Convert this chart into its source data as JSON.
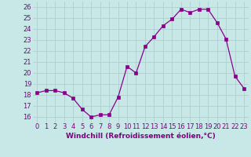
{
  "x": [
    0,
    1,
    2,
    3,
    4,
    5,
    6,
    7,
    8,
    9,
    10,
    11,
    12,
    13,
    14,
    15,
    16,
    17,
    18,
    19,
    20,
    21,
    22,
    23
  ],
  "y": [
    18.2,
    18.4,
    18.4,
    18.2,
    17.7,
    16.7,
    16.0,
    16.2,
    16.2,
    17.8,
    20.6,
    20.0,
    22.4,
    23.3,
    24.3,
    24.9,
    25.8,
    25.5,
    25.8,
    25.8,
    24.6,
    23.1,
    19.7,
    18.6
  ],
  "xlabel": "Windchill (Refroidissement éolien,°C)",
  "ylim": [
    15.5,
    26.5
  ],
  "yticks": [
    16,
    17,
    18,
    19,
    20,
    21,
    22,
    23,
    24,
    25,
    26
  ],
  "xticks": [
    0,
    1,
    2,
    3,
    4,
    5,
    6,
    7,
    8,
    9,
    10,
    11,
    12,
    13,
    14,
    15,
    16,
    17,
    18,
    19,
    20,
    21,
    22,
    23
  ],
  "line_color": "#8B008B",
  "marker_color": "#8B008B",
  "bg_color": "#c8e8e8",
  "grid_color": "#b0d0d0",
  "xlabel_fontsize": 6.5,
  "tick_fontsize": 6.0,
  "tick_color": "#800080",
  "xlabel_color": "#800080"
}
